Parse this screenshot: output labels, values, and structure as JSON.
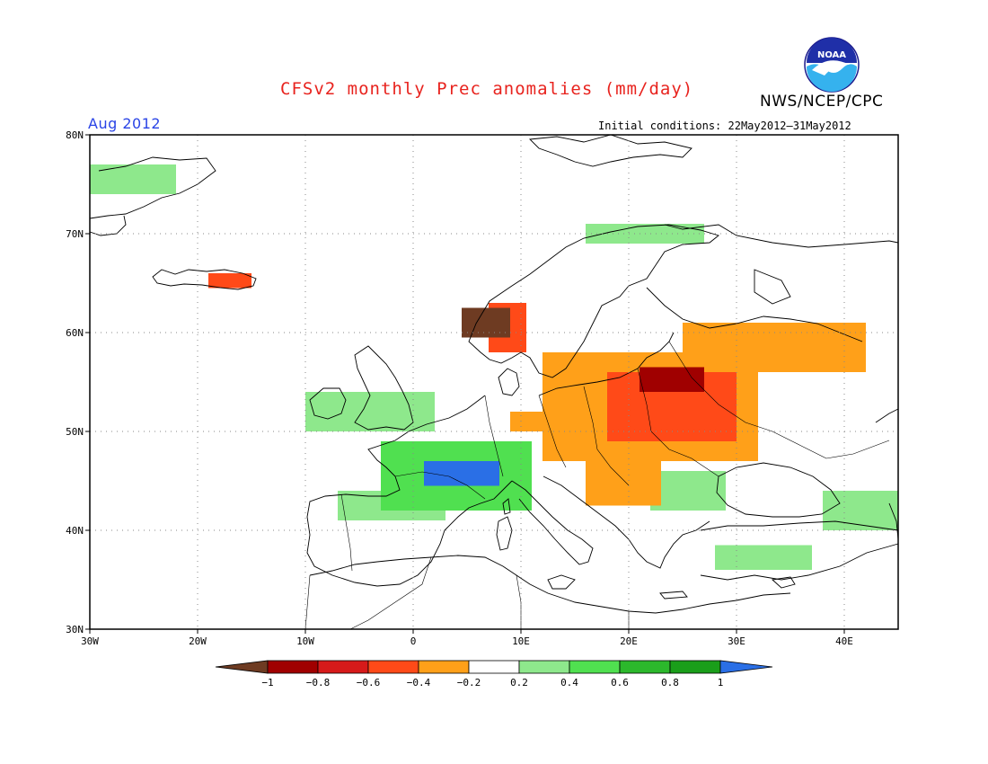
{
  "title": "CFSv2 monthly Prec anomalies (mm/day)",
  "organization": "NWS/NCEP/CPC",
  "logo_text": "NOAA",
  "period": "Aug 2012",
  "initial_conditions": "Initial conditions: 22May2012–31May2012",
  "map": {
    "lon_range": [
      -30,
      45
    ],
    "lat_range": [
      30,
      80
    ],
    "x_ticks": [
      {
        "lon": -30,
        "label": "30W"
      },
      {
        "lon": -20,
        "label": "20W"
      },
      {
        "lon": -10,
        "label": "10W"
      },
      {
        "lon": 0,
        "label": "0"
      },
      {
        "lon": 10,
        "label": "10E"
      },
      {
        "lon": 20,
        "label": "20E"
      },
      {
        "lon": 30,
        "label": "30E"
      },
      {
        "lon": 40,
        "label": "40E"
      }
    ],
    "y_ticks": [
      {
        "lat": 30,
        "label": "30N"
      },
      {
        "lat": 40,
        "label": "40N"
      },
      {
        "lat": 50,
        "label": "50N"
      },
      {
        "lat": 60,
        "label": "60N"
      },
      {
        "lat": 70,
        "label": "70N"
      },
      {
        "lat": 80,
        "label": "80N"
      }
    ],
    "grid": true
  },
  "colorbar": {
    "labels": [
      "−1",
      "−0.8",
      "−0.6",
      "−0.4",
      "−0.2",
      "0.2",
      "0.4",
      "0.6",
      "0.8",
      "1"
    ],
    "colors": {
      "below_min": "#6e3b22",
      "bins": [
        "#a00000",
        "#d61a1a",
        "#ff4a18",
        "#ffa019",
        "#ffffff",
        "#8ee88c",
        "#50e050",
        "#2cb82c",
        "#1a9e1a"
      ],
      "above_max": "#2a6fe6"
    }
  },
  "anomaly_regions": [
    {
      "region": "Norway west coast",
      "lon": [
        4.5,
        9
      ],
      "lat": [
        59.5,
        62.5
      ],
      "level": "-1"
    },
    {
      "region": "Norway southwest",
      "lon": [
        7,
        10.5
      ],
      "lat": [
        58,
        63
      ],
      "level": "-0.6"
    },
    {
      "region": "Iceland south",
      "lon": [
        -19,
        -15
      ],
      "lat": [
        64.5,
        66
      ],
      "level": "-0.6"
    },
    {
      "region": "Eastern Europe core",
      "lon": [
        18,
        30
      ],
      "lat": [
        49,
        56
      ],
      "level": "-0.6"
    },
    {
      "region": "Baltic / Belarus",
      "lon": [
        21,
        27
      ],
      "lat": [
        54,
        56.5
      ],
      "level": "-0.8"
    },
    {
      "region": "Central-Eastern Europe",
      "lon": [
        12,
        32
      ],
      "lat": [
        47,
        58
      ],
      "level": "-0.4"
    },
    {
      "region": "Western Russia",
      "lon": [
        25,
        42
      ],
      "lat": [
        56,
        61
      ],
      "level": "-0.4"
    },
    {
      "region": "Germany",
      "lon": [
        9,
        16
      ],
      "lat": [
        50,
        52
      ],
      "level": "-0.4"
    },
    {
      "region": "Hungary / Balkans north",
      "lon": [
        16,
        23
      ],
      "lat": [
        42.5,
        47
      ],
      "level": "-0.4"
    },
    {
      "region": "France / N. Italy",
      "lon": [
        -3,
        11
      ],
      "lat": [
        42,
        49
      ],
      "level": "0.6"
    },
    {
      "region": "Alps / SE France",
      "lon": [
        1,
        8
      ],
      "lat": [
        44.5,
        47
      ],
      "level": "1"
    },
    {
      "region": "Iberia north",
      "lon": [
        -7,
        3
      ],
      "lat": [
        41,
        44
      ],
      "level": "0.4"
    },
    {
      "region": "Romania / Bulgaria",
      "lon": [
        22,
        29
      ],
      "lat": [
        42,
        46
      ],
      "level": "0.4"
    },
    {
      "region": "Turkey south",
      "lon": [
        28,
        37
      ],
      "lat": [
        36,
        38.5
      ],
      "level": "0.4"
    },
    {
      "region": "Greenland east",
      "lon": [
        -30,
        -22
      ],
      "lat": [
        74,
        77
      ],
      "level": "0.4"
    },
    {
      "region": "Scandinavia north",
      "lon": [
        16,
        27
      ],
      "lat": [
        69,
        71
      ],
      "level": "0.4"
    },
    {
      "region": "British Isles",
      "lon": [
        -10,
        2
      ],
      "lat": [
        50,
        54
      ],
      "level": "0.2"
    },
    {
      "region": "Caucasus",
      "lon": [
        38,
        45
      ],
      "lat": [
        40,
        44
      ],
      "level": "0.4"
    }
  ]
}
